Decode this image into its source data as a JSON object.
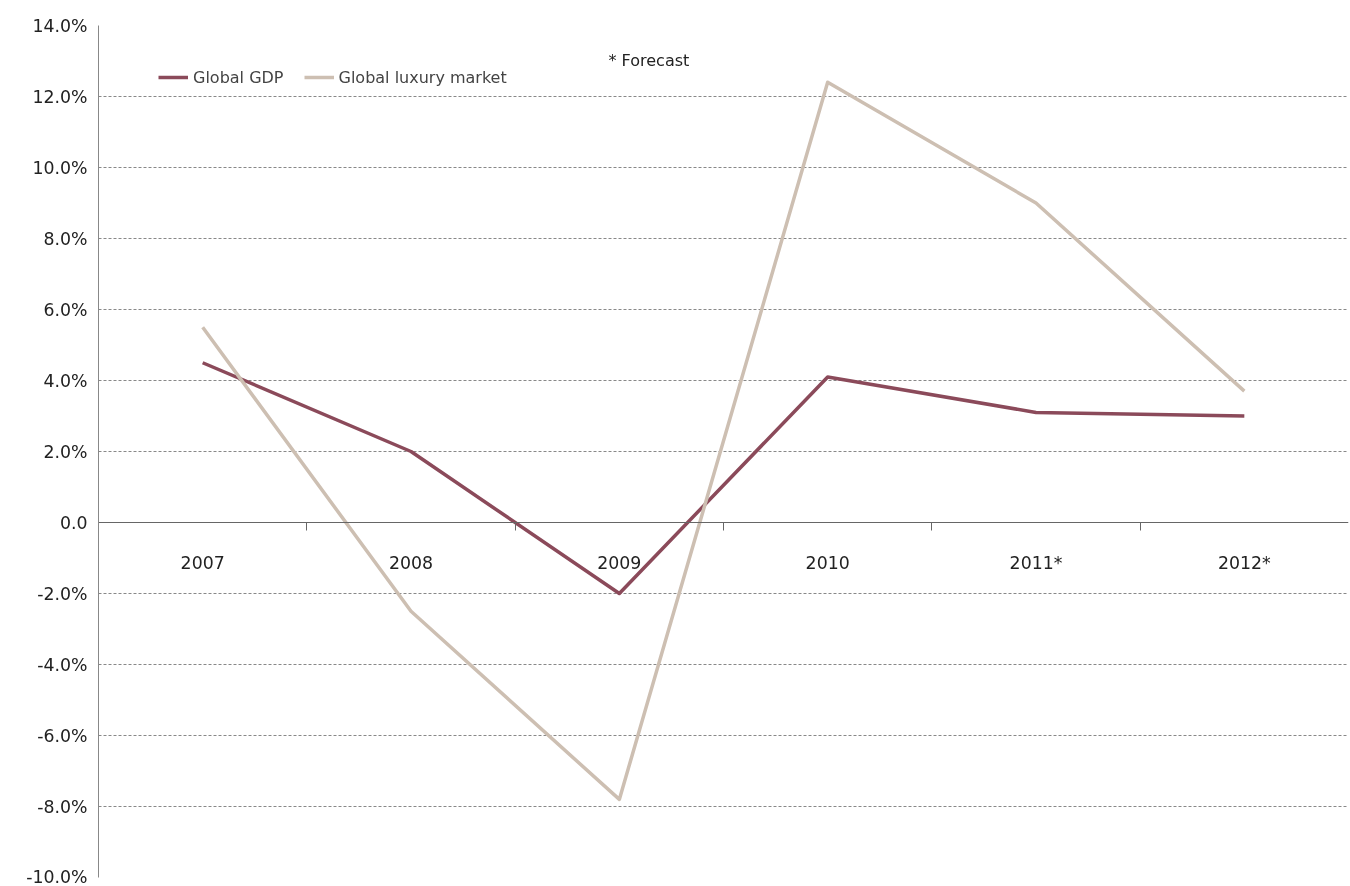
{
  "chart_data": {
    "type": "line",
    "categories": [
      "2007",
      "2008",
      "2009",
      "2010",
      "2011*",
      "2012*"
    ],
    "series": [
      {
        "name": "Global GDP",
        "color": "#8b4a5a",
        "values": [
          4.5,
          2.0,
          -2.0,
          4.1,
          3.1,
          3.0
        ]
      },
      {
        "name": "Global luxury market",
        "color": "#cdbfb2",
        "values": [
          5.5,
          -2.5,
          -7.8,
          12.4,
          9.0,
          3.7
        ]
      }
    ],
    "ylim": [
      -10,
      14
    ],
    "yticks": [
      {
        "value": -10,
        "label": "-10.0%"
      },
      {
        "value": -8,
        "label": "-8.0%"
      },
      {
        "value": -6,
        "label": "-6.0%"
      },
      {
        "value": -4,
        "label": "-4.0%"
      },
      {
        "value": -2,
        "label": "-2.0%"
      },
      {
        "value": 0,
        "label": "0.0"
      },
      {
        "value": 2,
        "label": "2.0%"
      },
      {
        "value": 4,
        "label": "4.0%"
      },
      {
        "value": 6,
        "label": "6.0%"
      },
      {
        "value": 8,
        "label": "8.0%"
      },
      {
        "value": 10,
        "label": "10.0%"
      },
      {
        "value": 12,
        "label": "12.0%"
      },
      {
        "value": 14,
        "label": "14.0%"
      }
    ],
    "grid": "y",
    "legend": "top left",
    "line_style": "solid",
    "annotations": [
      "* Forecast"
    ]
  }
}
